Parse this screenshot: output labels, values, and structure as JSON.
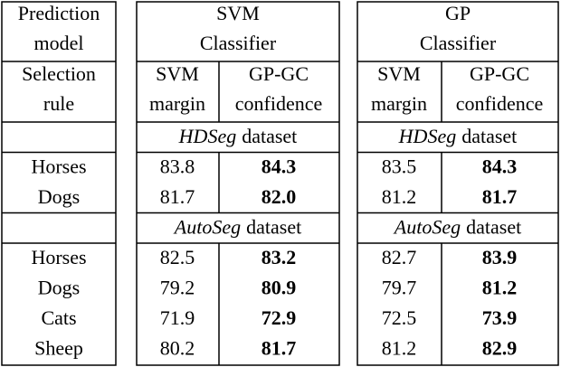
{
  "header": {
    "prediction_model": [
      "Prediction",
      "model"
    ],
    "classifiers": [
      [
        "SVM",
        "Classifier"
      ],
      [
        "GP",
        "Classifier"
      ]
    ],
    "selection_rule": [
      "Selection",
      "rule"
    ],
    "rules": [
      [
        "SVM",
        "margin"
      ],
      [
        "GP-GC",
        "confidence"
      ]
    ]
  },
  "sections": [
    {
      "dataset_name": "HDSeg",
      "dataset_suffix": "dataset",
      "rows": [
        {
          "label": "Horses",
          "values": [
            [
              "83.8",
              "84.3"
            ],
            [
              "83.5",
              "84.3"
            ]
          ]
        },
        {
          "label": "Dogs",
          "values": [
            [
              "81.7",
              "82.0"
            ],
            [
              "81.2",
              "81.7"
            ]
          ]
        }
      ]
    },
    {
      "dataset_name": "AutoSeg",
      "dataset_suffix": "dataset",
      "rows": [
        {
          "label": "Horses",
          "values": [
            [
              "82.5",
              "83.2"
            ],
            [
              "82.7",
              "83.9"
            ]
          ]
        },
        {
          "label": "Dogs",
          "values": [
            [
              "79.2",
              "80.9"
            ],
            [
              "79.7",
              "81.2"
            ]
          ]
        },
        {
          "label": "Cats",
          "values": [
            [
              "71.9",
              "72.9"
            ],
            [
              "72.5",
              "73.9"
            ]
          ]
        },
        {
          "label": "Sheep",
          "values": [
            [
              "80.2",
              "81.7"
            ],
            [
              "81.2",
              "82.9"
            ]
          ]
        }
      ]
    }
  ]
}
